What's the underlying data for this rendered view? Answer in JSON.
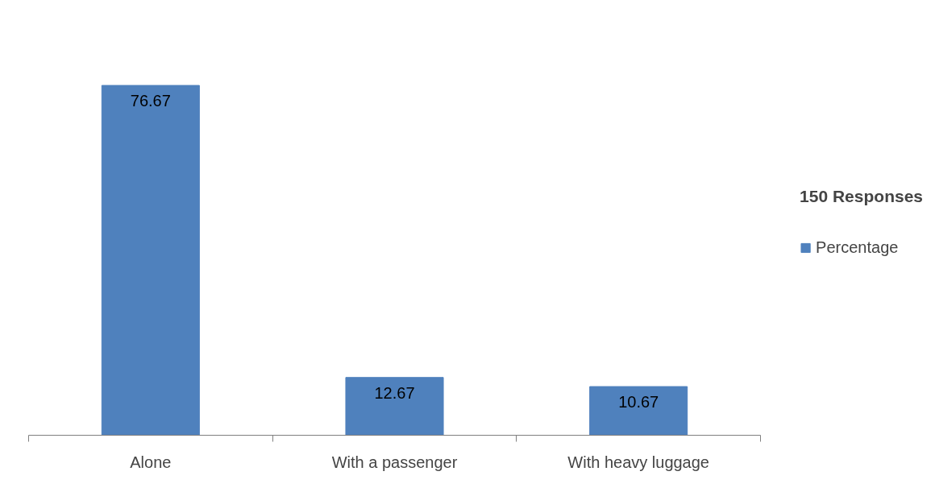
{
  "chart_data": {
    "type": "bar",
    "categories": [
      "Alone",
      "With a passenger",
      "With heavy luggage"
    ],
    "series": [
      {
        "name": "Percentage",
        "color": "#4f81bd",
        "values": [
          76.67,
          12.67,
          10.67
        ]
      }
    ],
    "legend_title": "150 Responses",
    "legend": "right",
    "data_labels": true,
    "grid": false
  }
}
